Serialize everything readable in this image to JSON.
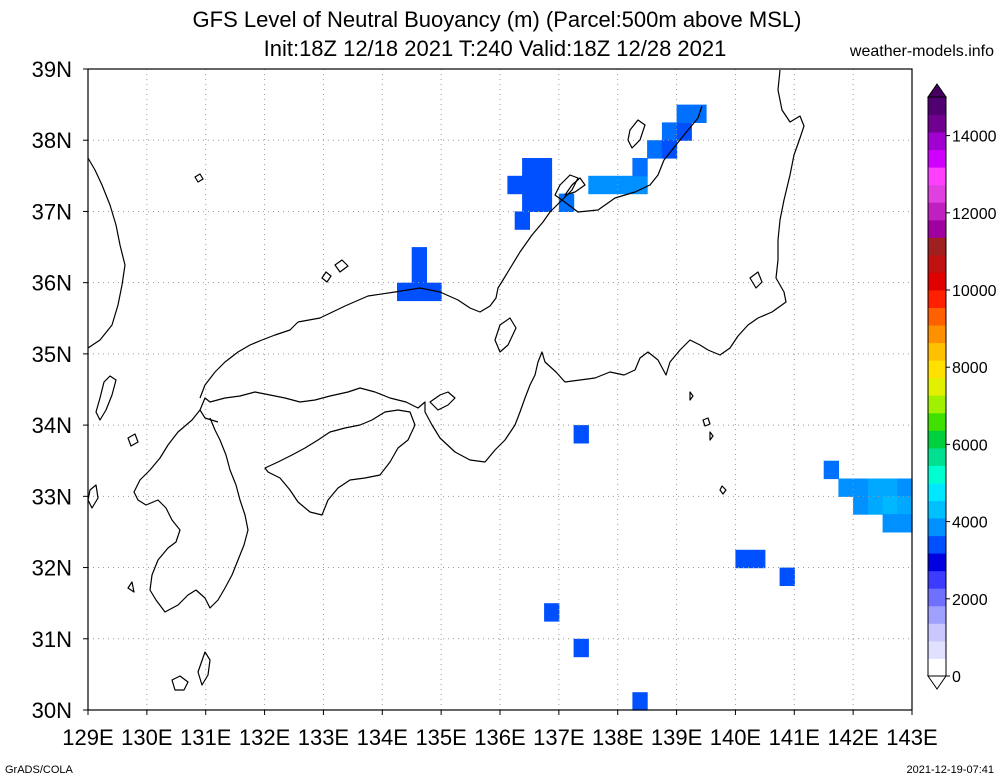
{
  "header": {
    "title_line1": "GFS Level of Neutral Buoyancy (m) (Parcel:500m above MSL)",
    "title_line2": "Init:18Z 12/18 2021 T:240 Valid:18Z 12/28 2021",
    "site": "weather-models.info"
  },
  "footer": {
    "left": "GrADS/COLA",
    "right": "2021-12-19-07:41"
  },
  "map": {
    "lon_range": [
      129,
      143
    ],
    "lat_range": [
      30,
      39
    ],
    "lon_labels": [
      "129E",
      "130E",
      "131E",
      "132E",
      "133E",
      "134E",
      "135E",
      "136E",
      "137E",
      "138E",
      "139E",
      "140E",
      "141E",
      "142E",
      "143E"
    ],
    "lat_labels": [
      "30N",
      "31N",
      "32N",
      "33N",
      "34N",
      "35N",
      "36N",
      "37N",
      "38N",
      "39N"
    ],
    "grid": "dotted",
    "coastline_color": "#000000"
  },
  "colorbar": {
    "labels": [
      "0",
      "2000",
      "4000",
      "6000",
      "8000",
      "10000",
      "12000",
      "14000"
    ],
    "colors": [
      "#ffffff",
      "#e0e0ff",
      "#c8c8ff",
      "#a0a0ff",
      "#7070ff",
      "#3c3cff",
      "#0000e0",
      "#0050ff",
      "#0090ff",
      "#00c0ff",
      "#00e8ff",
      "#00ffd0",
      "#00e090",
      "#00d040",
      "#40e000",
      "#a0f000",
      "#e0f000",
      "#ffe000",
      "#ffc000",
      "#ff9000",
      "#ff6000",
      "#ff2000",
      "#e00000",
      "#c01010",
      "#a02020",
      "#a000a0",
      "#c020c0",
      "#e040e0",
      "#ff40ff",
      "#d000ff",
      "#a000d0",
      "#700090",
      "#500070"
    ],
    "value_range": [
      0,
      15000
    ]
  },
  "cells": [
    {
      "lon": 136.25,
      "lat": 37.375,
      "c": "#0050ff"
    },
    {
      "lon": 136.5,
      "lat": 37.375,
      "c": "#0050ff"
    },
    {
      "lon": 136.75,
      "lat": 37.375,
      "c": "#0050ff"
    },
    {
      "lon": 136.5,
      "lat": 37.625,
      "c": "#0050ff"
    },
    {
      "lon": 136.75,
      "lat": 37.625,
      "c": "#0050ff"
    },
    {
      "lon": 136.5,
      "lat": 37.125,
      "c": "#0050ff"
    },
    {
      "lon": 136.75,
      "lat": 37.125,
      "c": "#0050ff"
    },
    {
      "lon": 136.375,
      "lat": 36.875,
      "c": "#0050ff"
    },
    {
      "lon": 137.125,
      "lat": 37.125,
      "c": "#0070ff"
    },
    {
      "lon": 137.625,
      "lat": 37.375,
      "c": "#0090ff"
    },
    {
      "lon": 137.875,
      "lat": 37.375,
      "c": "#0090ff"
    },
    {
      "lon": 138.125,
      "lat": 37.375,
      "c": "#0090ff"
    },
    {
      "lon": 138.375,
      "lat": 37.375,
      "c": "#0090ff"
    },
    {
      "lon": 138.375,
      "lat": 37.625,
      "c": "#0070ff"
    },
    {
      "lon": 138.625,
      "lat": 37.875,
      "c": "#0070ff"
    },
    {
      "lon": 138.875,
      "lat": 38.125,
      "c": "#0070ff"
    },
    {
      "lon": 139.125,
      "lat": 38.125,
      "c": "#0050ff"
    },
    {
      "lon": 138.875,
      "lat": 37.875,
      "c": "#0050ff"
    },
    {
      "lon": 139.125,
      "lat": 38.375,
      "c": "#0070ff"
    },
    {
      "lon": 139.375,
      "lat": 38.375,
      "c": "#0070ff"
    },
    {
      "lon": 134.625,
      "lat": 36.375,
      "c": "#0050ff"
    },
    {
      "lon": 134.625,
      "lat": 36.125,
      "c": "#0050ff"
    },
    {
      "lon": 134.375,
      "lat": 35.875,
      "c": "#0050ff"
    },
    {
      "lon": 134.625,
      "lat": 35.875,
      "c": "#0050ff"
    },
    {
      "lon": 134.875,
      "lat": 35.875,
      "c": "#0050ff"
    },
    {
      "lon": 137.375,
      "lat": 33.875,
      "c": "#0050ff"
    },
    {
      "lon": 140.125,
      "lat": 32.125,
      "c": "#0050ff"
    },
    {
      "lon": 140.375,
      "lat": 32.125,
      "c": "#0050ff"
    },
    {
      "lon": 140.875,
      "lat": 31.875,
      "c": "#0050ff"
    },
    {
      "lon": 136.875,
      "lat": 31.375,
      "c": "#0050ff"
    },
    {
      "lon": 137.375,
      "lat": 30.875,
      "c": "#0050ff"
    },
    {
      "lon": 138.375,
      "lat": 30.125,
      "c": "#0050ff"
    },
    {
      "lon": 141.625,
      "lat": 33.375,
      "c": "#0070ff"
    },
    {
      "lon": 141.875,
      "lat": 33.125,
      "c": "#0090ff"
    },
    {
      "lon": 142.125,
      "lat": 33.125,
      "c": "#0090ff"
    },
    {
      "lon": 142.375,
      "lat": 33.125,
      "c": "#00a8ff"
    },
    {
      "lon": 142.625,
      "lat": 33.125,
      "c": "#00a8ff"
    },
    {
      "lon": 142.875,
      "lat": 33.125,
      "c": "#0090ff"
    },
    {
      "lon": 142.125,
      "lat": 32.875,
      "c": "#0090ff"
    },
    {
      "lon": 142.375,
      "lat": 32.875,
      "c": "#00a8ff"
    },
    {
      "lon": 142.625,
      "lat": 32.875,
      "c": "#00b8ff"
    },
    {
      "lon": 142.875,
      "lat": 32.875,
      "c": "#00a8ff"
    },
    {
      "lon": 142.625,
      "lat": 32.625,
      "c": "#0090ff"
    },
    {
      "lon": 142.875,
      "lat": 32.625,
      "c": "#0090ff"
    }
  ]
}
